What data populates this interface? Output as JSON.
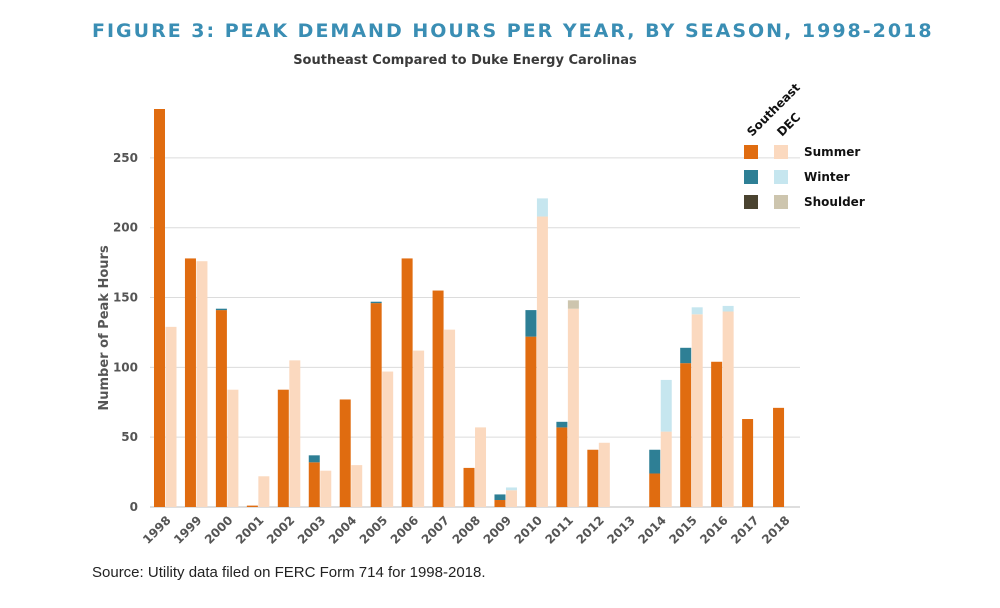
{
  "title": "FIGURE 3: PEAK DEMAND HOURS PER YEAR, BY SEASON, 1998-2018",
  "subtitle": "Southeast Compared to Duke Energy Carolinas",
  "source": "Source: Utility data filed on FERC Form 714 for 1998-2018.",
  "chart_data": {
    "type": "bar",
    "stacked": true,
    "grouped": true,
    "ylabel": "Number of Peak Hours",
    "ylim": [
      0,
      285
    ],
    "yticks": [
      0,
      50,
      100,
      150,
      200,
      250
    ],
    "grid": true,
    "legend_position": "top-right",
    "legend_group_headers": [
      "Southeast",
      "DEC"
    ],
    "categories": [
      "1998",
      "1999",
      "2000",
      "2001",
      "2002",
      "2003",
      "2004",
      "2005",
      "2006",
      "2007",
      "2008",
      "2009",
      "2010",
      "2011",
      "2012",
      "2013",
      "2014",
      "2015",
      "2016",
      "2017",
      "2018"
    ],
    "groups": [
      {
        "name": "Southeast",
        "series": [
          {
            "name": "Summer",
            "color": "#e06c10",
            "values": [
              285,
              178,
              141,
              1,
              84,
              32,
              77,
              146,
              178,
              155,
              28,
              5,
              122,
              57,
              41,
              0,
              24,
              103,
              104,
              63,
              71
            ]
          },
          {
            "name": "Winter",
            "color": "#2e7f95",
            "values": [
              0,
              0,
              1,
              0,
              0,
              5,
              0,
              1,
              0,
              0,
              0,
              4,
              19,
              4,
              0,
              0,
              17,
              11,
              0,
              0,
              0
            ]
          },
          {
            "name": "Shoulder",
            "color": "#4a4330",
            "values": [
              0,
              0,
              0,
              0,
              0,
              0,
              0,
              0,
              0,
              0,
              0,
              0,
              0,
              0,
              0,
              0,
              0,
              0,
              0,
              0,
              0
            ]
          }
        ]
      },
      {
        "name": "DEC",
        "series": [
          {
            "name": "Summer",
            "color": "#fbd9bf",
            "values": [
              129,
              176,
              84,
              22,
              105,
              26,
              30,
              97,
              112,
              127,
              57,
              12,
              208,
              142,
              46,
              0,
              54,
              138,
              140,
              0,
              0
            ]
          },
          {
            "name": "Winter",
            "color": "#c6e6ef",
            "values": [
              0,
              0,
              0,
              0,
              0,
              0,
              0,
              0,
              0,
              0,
              0,
              2,
              13,
              0,
              0,
              0,
              37,
              5,
              4,
              0,
              0
            ]
          },
          {
            "name": "Shoulder",
            "color": "#cdc5ae",
            "values": [
              0,
              0,
              0,
              0,
              0,
              0,
              0,
              0,
              0,
              0,
              0,
              0,
              0,
              6,
              0,
              0,
              0,
              0,
              0,
              0,
              0
            ]
          }
        ]
      }
    ]
  }
}
